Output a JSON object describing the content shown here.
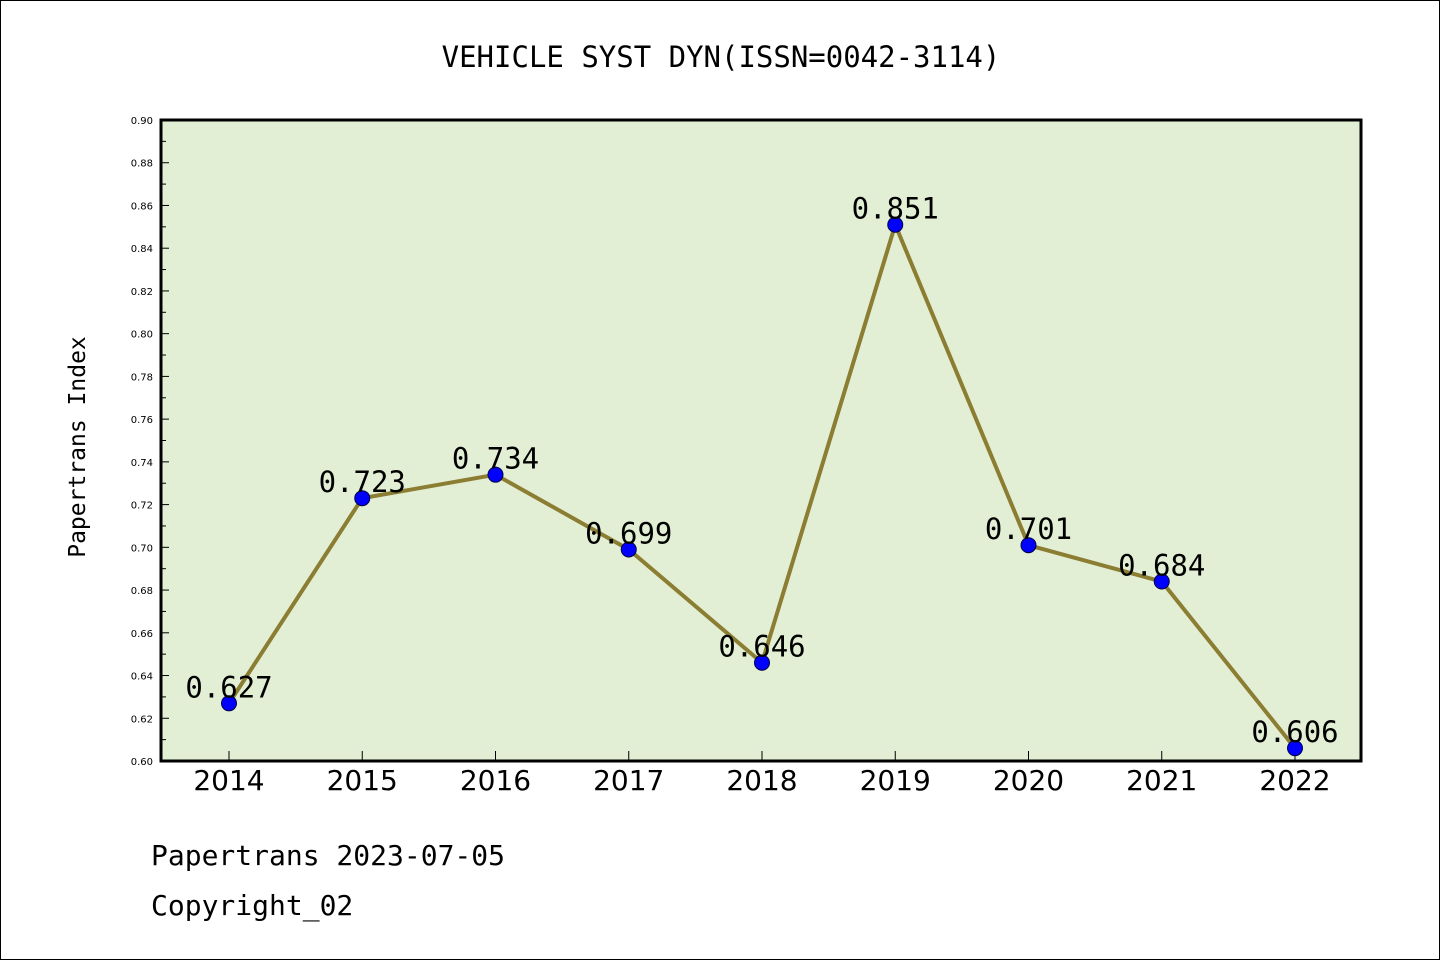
{
  "chart_data": {
    "type": "line",
    "title": "VEHICLE SYST DYN(ISSN=0042-3114)",
    "xlabel": "",
    "ylabel": "Papertrans Index",
    "categories": [
      "2014",
      "2015",
      "2016",
      "2017",
      "2018",
      "2019",
      "2020",
      "2021",
      "2022"
    ],
    "series": [
      {
        "values": [
          0.627,
          0.723,
          0.734,
          0.699,
          0.646,
          0.851,
          0.701,
          0.684,
          0.606
        ],
        "labels": [
          "0.627",
          "0.723",
          "0.734",
          "0.699",
          "0.646",
          "0.851",
          "0.701",
          "0.684",
          "0.606"
        ]
      }
    ],
    "ylim": [
      0.6,
      0.9
    ],
    "yticks": [
      "0.60",
      "0.62",
      "0.64",
      "0.66",
      "0.68",
      "0.70",
      "0.72",
      "0.74",
      "0.76",
      "0.78",
      "0.80",
      "0.82",
      "0.84",
      "0.86",
      "0.88",
      "0.90"
    ],
    "grid": false,
    "legend": "none",
    "colors": {
      "plot_background": "#e2efd4",
      "line": "#8b7d32",
      "marker": "#0000ff"
    }
  },
  "footer": {
    "line1": "Papertrans 2023-07-05",
    "line2": "Copyright_02"
  }
}
